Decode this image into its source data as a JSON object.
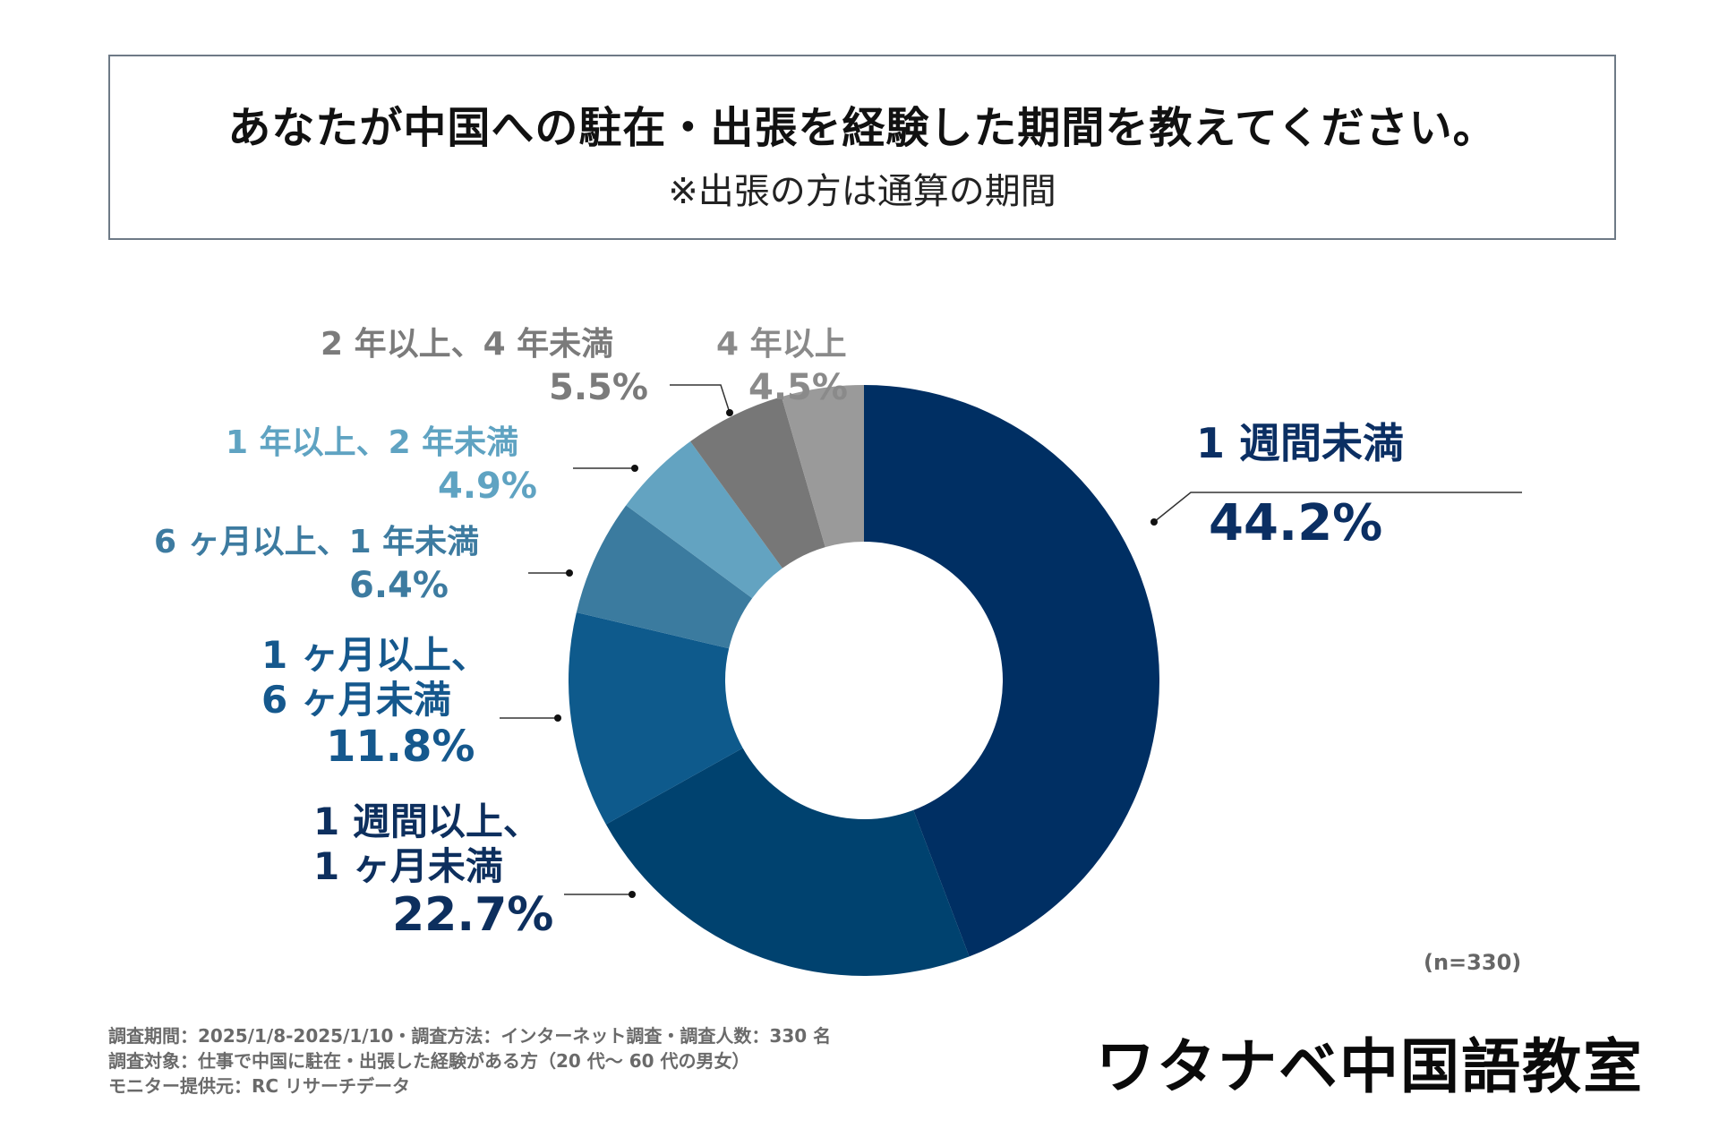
{
  "title": {
    "main": "あなたが中国への駐在・出張を経験した期間を教えてください。",
    "sub": "※出張の方は通算の期間"
  },
  "chart_data": {
    "type": "pie",
    "variant": "donut",
    "n_label": "(n=330)",
    "direction": "clockwise",
    "start": "12 o'clock",
    "slices": [
      {
        "label": "1 週間未満",
        "label_lines": [
          "1 週間未満"
        ],
        "value": 44.2,
        "value_text": "44.2%",
        "color": "#002f63",
        "text_color": "#0b2f63"
      },
      {
        "label": "1 週間以上、1 ヶ月未満",
        "label_lines": [
          "1 週間以上、",
          "1 ヶ月未満"
        ],
        "value": 22.7,
        "value_text": "22.7%",
        "color": "#00426f",
        "text_color": "#0d2f5e"
      },
      {
        "label": "1 ヶ月以上、6 ヶ月未満",
        "label_lines": [
          "1 ヶ月以上、",
          "6 ヶ月未満"
        ],
        "value": 11.8,
        "value_text": "11.8%",
        "color": "#0e5a8c",
        "text_color": "#15588d"
      },
      {
        "label": "6 ヶ月以上、1 年未満",
        "label_lines": [
          "6 ヶ月以上、1 年未満"
        ],
        "value": 6.4,
        "value_text": "6.4%",
        "color": "#3b7b9f",
        "text_color": "#3d7ba0"
      },
      {
        "label": "1 年以上、2 年未満",
        "label_lines": [
          "1 年以上、2 年未満"
        ],
        "value": 4.9,
        "value_text": "4.9%",
        "color": "#63a3c1",
        "text_color": "#5fa3c2"
      },
      {
        "label": "2 年以上、4 年未満",
        "label_lines": [
          "2 年以上、4 年未満"
        ],
        "value": 5.5,
        "value_text": "5.5%",
        "color": "#777777",
        "text_color": "#7b7b7b"
      },
      {
        "label": "4 年以上",
        "label_lines": [
          "4 年以上"
        ],
        "value": 4.5,
        "value_text": "4.5%",
        "color": "#9a9a9a",
        "text_color": "#8a8a8a"
      }
    ]
  },
  "footer": {
    "line1": "調査期間：2025/1/8-2025/1/10・調査方法：インターネット調査・調査人数：330 名",
    "line2": "調査対象：仕事で中国に駐在・出張した経験がある方（20 代～ 60 代の男女）",
    "line3": "モニター提供元：RC リサーチデータ"
  },
  "logo": "ワタナベ中国語教室"
}
